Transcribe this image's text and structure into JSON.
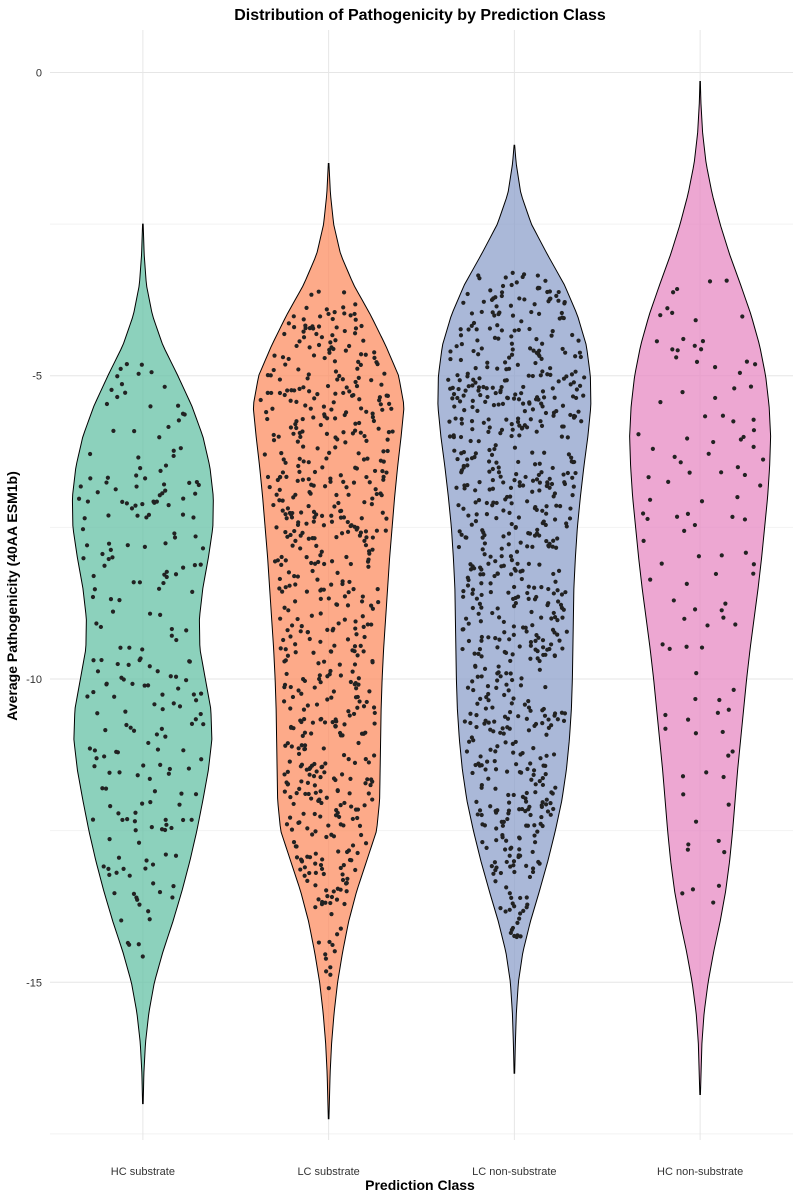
{
  "chart_data": {
    "type": "violin",
    "title": "Distribution of Pathogenicity by Prediction Class",
    "xlabel": "Prediction Class",
    "ylabel": "Average Pathogenicity (40AA ESM1b)",
    "ylim": [
      -17.6,
      0.7
    ],
    "y_ticks": [
      0,
      -5,
      -10,
      -15
    ],
    "y_tick_labels": [
      "0",
      "-5",
      "-10",
      "-15"
    ],
    "grid": true,
    "legend": "none",
    "categories": [
      "HC substrate",
      "LC substrate",
      "LC non-substrate",
      "HC non-substrate"
    ],
    "series": [
      {
        "category": "HC substrate",
        "color": "#66C2A5",
        "min": -17.0,
        "max": -2.5,
        "n_points": 230,
        "jitter_range": [
          -14.6,
          -4.8
        ],
        "density_profile": [
          [
            -17.0,
            0.3
          ],
          [
            -16.5,
            1.0
          ],
          [
            -16.0,
            2.6
          ],
          [
            -15.5,
            6.0
          ],
          [
            -15.0,
            11.5
          ],
          [
            -14.5,
            20.0
          ],
          [
            -14.0,
            30.0
          ],
          [
            -13.5,
            39.0
          ],
          [
            -13.0,
            47.0
          ],
          [
            -12.5,
            54.0
          ],
          [
            -12.0,
            60.0
          ],
          [
            -11.5,
            65.5
          ],
          [
            -11.0,
            69.0
          ],
          [
            -10.5,
            68.0
          ],
          [
            -10.0,
            62.5
          ],
          [
            -9.5,
            57.0
          ],
          [
            -9.0,
            56.5
          ],
          [
            -8.5,
            60.0
          ],
          [
            -8.0,
            65.5
          ],
          [
            -7.5,
            70.0
          ],
          [
            -7.0,
            70.5
          ],
          [
            -6.5,
            67.0
          ],
          [
            -6.0,
            60.0
          ],
          [
            -5.5,
            49.0
          ],
          [
            -5.0,
            35.0
          ],
          [
            -4.5,
            20.0
          ],
          [
            -4.0,
            9.5
          ],
          [
            -3.5,
            3.5
          ],
          [
            -3.0,
            1.3
          ],
          [
            -2.5,
            0.3
          ]
        ]
      },
      {
        "category": "LC substrate",
        "color": "#FC8D62",
        "min": -17.25,
        "max": -1.5,
        "n_points": 640,
        "jitter_range": [
          -15.2,
          -3.6
        ],
        "density_profile": [
          [
            -17.25,
            0.3
          ],
          [
            -16.5,
            1.5
          ],
          [
            -16.0,
            3.0
          ],
          [
            -15.5,
            5.5
          ],
          [
            -15.0,
            9.0
          ],
          [
            -14.5,
            14.0
          ],
          [
            -14.0,
            20.0
          ],
          [
            -13.5,
            28.0
          ],
          [
            -13.0,
            38.0
          ],
          [
            -12.5,
            48.0
          ],
          [
            -12.0,
            51.0
          ],
          [
            -11.5,
            51.5
          ],
          [
            -11.0,
            52.0
          ],
          [
            -10.5,
            52.5
          ],
          [
            -10.0,
            53.5
          ],
          [
            -9.5,
            55.0
          ],
          [
            -9.0,
            57.0
          ],
          [
            -8.5,
            59.0
          ],
          [
            -8.0,
            61.0
          ],
          [
            -7.5,
            63.5
          ],
          [
            -7.0,
            66.0
          ],
          [
            -6.5,
            69.0
          ],
          [
            -6.0,
            72.5
          ],
          [
            -5.5,
            75.5
          ],
          [
            -5.0,
            70.0
          ],
          [
            -4.5,
            57.0
          ],
          [
            -4.0,
            42.0
          ],
          [
            -3.5,
            25.0
          ],
          [
            -3.0,
            12.0
          ],
          [
            -2.5,
            5.0
          ],
          [
            -2.0,
            1.8
          ],
          [
            -1.5,
            0.3
          ]
        ]
      },
      {
        "category": "LC non-substrate",
        "color": "#8DA0CB",
        "min": -16.5,
        "max": -1.2,
        "n_points": 760,
        "jitter_range": [
          -14.3,
          -3.3
        ],
        "density_profile": [
          [
            -16.5,
            0.3
          ],
          [
            -16.0,
            1.0
          ],
          [
            -15.5,
            2.0
          ],
          [
            -15.0,
            4.0
          ],
          [
            -14.5,
            8.5
          ],
          [
            -14.0,
            16.0
          ],
          [
            -13.5,
            25.0
          ],
          [
            -13.0,
            33.5
          ],
          [
            -12.5,
            41.0
          ],
          [
            -12.0,
            47.5
          ],
          [
            -11.5,
            52.0
          ],
          [
            -11.0,
            55.0
          ],
          [
            -10.5,
            57.0
          ],
          [
            -10.0,
            58.0
          ],
          [
            -9.5,
            58.5
          ],
          [
            -9.0,
            59.0
          ],
          [
            -8.5,
            59.5
          ],
          [
            -8.0,
            61.0
          ],
          [
            -7.5,
            63.0
          ],
          [
            -7.0,
            66.0
          ],
          [
            -6.5,
            69.5
          ],
          [
            -6.0,
            73.5
          ],
          [
            -5.5,
            76.5
          ],
          [
            -5.0,
            76.0
          ],
          [
            -4.5,
            72.0
          ],
          [
            -4.0,
            63.0
          ],
          [
            -3.5,
            50.0
          ],
          [
            -3.0,
            33.0
          ],
          [
            -2.5,
            17.0
          ],
          [
            -2.0,
            6.5
          ],
          [
            -1.5,
            1.8
          ],
          [
            -1.2,
            0.3
          ]
        ]
      },
      {
        "category": "HC non-substrate",
        "color": "#E78AC3",
        "min": -16.85,
        "max": -0.15,
        "n_points": 110,
        "jitter_range": [
          -13.7,
          -3.3
        ],
        "density_profile": [
          [
            -16.85,
            0.3
          ],
          [
            -16.0,
            1.8
          ],
          [
            -15.5,
            4.0
          ],
          [
            -15.0,
            8.0
          ],
          [
            -14.5,
            13.5
          ],
          [
            -14.0,
            20.0
          ],
          [
            -13.5,
            25.5
          ],
          [
            -13.0,
            29.5
          ],
          [
            -12.5,
            32.5
          ],
          [
            -12.0,
            35.0
          ],
          [
            -11.5,
            37.5
          ],
          [
            -11.0,
            40.5
          ],
          [
            -10.5,
            43.5
          ],
          [
            -10.0,
            46.5
          ],
          [
            -9.5,
            50.0
          ],
          [
            -9.0,
            54.0
          ],
          [
            -8.5,
            58.0
          ],
          [
            -8.0,
            61.5
          ],
          [
            -7.5,
            64.5
          ],
          [
            -7.0,
            67.5
          ],
          [
            -6.5,
            69.5
          ],
          [
            -6.0,
            70.5
          ],
          [
            -5.5,
            69.0
          ],
          [
            -5.0,
            65.5
          ],
          [
            -4.5,
            59.5
          ],
          [
            -4.0,
            51.0
          ],
          [
            -3.5,
            40.5
          ],
          [
            -3.0,
            29.5
          ],
          [
            -2.5,
            20.0
          ],
          [
            -2.0,
            12.0
          ],
          [
            -1.5,
            6.0
          ],
          [
            -1.0,
            2.5
          ],
          [
            -0.5,
            0.8
          ],
          [
            -0.15,
            0.2
          ]
        ]
      }
    ]
  }
}
